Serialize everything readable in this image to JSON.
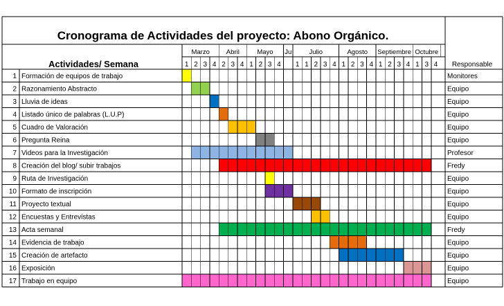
{
  "title": "Cronograma de Actividades del proyecto: Abono Orgánico.",
  "activities_header": "Actividades/ Semana",
  "responsible_header": "Responsable",
  "months": [
    {
      "name": "Marzo",
      "weeks": [
        "1",
        "2",
        "3",
        "4"
      ]
    },
    {
      "name": "Abril",
      "weeks": [
        "2",
        "3",
        "4"
      ]
    },
    {
      "name": "Mayo",
      "weeks": [
        "1",
        "2",
        "3",
        "4"
      ]
    },
    {
      "name": "Ju",
      "weeks": [
        ""
      ]
    },
    {
      "name": "Julio",
      "weeks": [
        "1",
        "1",
        "2",
        "3",
        "4"
      ]
    },
    {
      "name": "Agosto",
      "weeks": [
        "1",
        "2",
        "3",
        "4"
      ]
    },
    {
      "name": "Septiembre",
      "weeks": [
        "1",
        "2",
        "3",
        "4"
      ]
    },
    {
      "name": "Octubre",
      "weeks": [
        "1",
        "3",
        "4"
      ]
    }
  ],
  "activities": [
    {
      "n": "1",
      "name": "Formación de equipos de trabajo",
      "responsible": "Monitores",
      "start": 0,
      "span": 1,
      "color": "#FFFF00"
    },
    {
      "n": "2",
      "name": "Razonamiento Abstracto",
      "responsible": "Equipo",
      "start": 1,
      "span": 2,
      "color": "#92D050"
    },
    {
      "n": "3",
      "name": "Lluvia de ideas",
      "responsible": "Equipo",
      "start": 3,
      "span": 1,
      "color": "#0070C0"
    },
    {
      "n": "4",
      "name": "Listado único de palabras (L.U.P)",
      "responsible": "Equipo",
      "start": 4,
      "span": 1,
      "color": "#E46C0A"
    },
    {
      "n": "5",
      "name": "Cuadro de Valoración",
      "responsible": "Equipo",
      "start": 5,
      "span": 3,
      "color": "#FFC000"
    },
    {
      "n": "6",
      "name": "Pregunta Reina",
      "responsible": "Equipo",
      "start": 8,
      "span": 2,
      "color": "#808080"
    },
    {
      "n": "7",
      "name": "Videos para la Investigación",
      "responsible": "Profesor",
      "start": 1,
      "span": 11,
      "color": "#8DB4E2"
    },
    {
      "n": "8",
      "name": "Creación del blog/ subir trabajos",
      "responsible": "Fredy",
      "start": 4,
      "span": 23,
      "color": "#FF0000"
    },
    {
      "n": "9",
      "name": "Ruta de Investigación",
      "responsible": "Equipo",
      "start": 9,
      "span": 1,
      "color": "#FFFF00"
    },
    {
      "n": "10",
      "name": "Formato de inscripción",
      "responsible": "Equipo",
      "start": 9,
      "span": 3,
      "color": "#7030A0"
    },
    {
      "n": "11",
      "name": "Proyecto textual",
      "responsible": "Equipo",
      "start": 12,
      "span": 3,
      "color": "#984807"
    },
    {
      "n": "12",
      "name": "Encuestas y Entrevistas",
      "responsible": "Equipo",
      "start": 14,
      "span": 2,
      "color": "#FFC000"
    },
    {
      "n": "13",
      "name": "Acta semanal",
      "responsible": "Fredy",
      "start": 4,
      "span": 23,
      "color": "#00B050"
    },
    {
      "n": "14",
      "name": "Evidencia de trabajo",
      "responsible": "Equipo",
      "start": 16,
      "span": 4,
      "color": "#E46C0A"
    },
    {
      "n": "15",
      "name": "Creación de artefacto",
      "responsible": "Equipo",
      "start": 17,
      "span": 7,
      "color": "#0070C0"
    },
    {
      "n": "16",
      "name": "Exposición",
      "responsible": "Equipo",
      "start": 24,
      "span": 3,
      "color": "#D99694"
    },
    {
      "n": "17",
      "name": "Trabajo en equipo",
      "responsible": "Equipo",
      "start": 0,
      "span": 27,
      "color": "#FF66CC"
    }
  ]
}
